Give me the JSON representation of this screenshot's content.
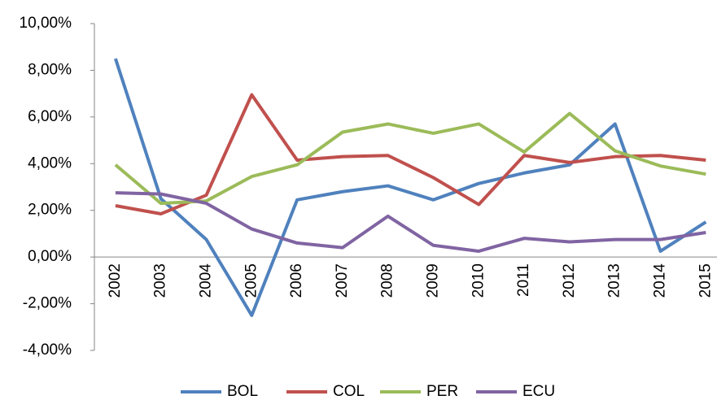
{
  "chart_data": {
    "type": "line",
    "categories": [
      "2002",
      "2003",
      "2004",
      "2005",
      "2006",
      "2007",
      "2008",
      "2009",
      "2010",
      "2011",
      "2012",
      "2013",
      "2014",
      "2015"
    ],
    "series": [
      {
        "name": "BOL",
        "color": "#4f81bd",
        "values": [
          8.5,
          2.5,
          0.75,
          -2.5,
          2.45,
          2.8,
          3.05,
          2.45,
          3.15,
          3.6,
          3.95,
          5.7,
          0.25,
          1.5
        ]
      },
      {
        "name": "COL",
        "color": "#c0504d",
        "values": [
          2.2,
          1.85,
          2.65,
          6.95,
          4.15,
          4.3,
          4.35,
          3.4,
          2.25,
          4.35,
          4.05,
          4.3,
          4.35,
          4.15
        ]
      },
      {
        "name": "PER",
        "color": "#9bbb59",
        "values": [
          3.95,
          2.3,
          2.4,
          3.45,
          3.95,
          5.35,
          5.7,
          5.3,
          5.7,
          4.5,
          6.15,
          4.55,
          3.9,
          3.55
        ]
      },
      {
        "name": "ECU",
        "color": "#8064a2",
        "values": [
          2.75,
          2.7,
          2.3,
          1.2,
          0.6,
          0.4,
          1.75,
          0.5,
          0.25,
          0.8,
          0.65,
          0.75,
          0.75,
          1.05
        ]
      }
    ],
    "ylim": [
      -4,
      10
    ],
    "yticks": [
      {
        "value": -4,
        "label": "-4,00%"
      },
      {
        "value": -2,
        "label": "-2,00%"
      },
      {
        "value": 0,
        "label": "0,00%"
      },
      {
        "value": 2,
        "label": "2,00%"
      },
      {
        "value": 4,
        "label": "4,00%"
      },
      {
        "value": 6,
        "label": "6,00%"
      },
      {
        "value": 8,
        "label": "8,00%"
      },
      {
        "value": 10,
        "label": "10,00%"
      }
    ],
    "legend": "bottom"
  }
}
